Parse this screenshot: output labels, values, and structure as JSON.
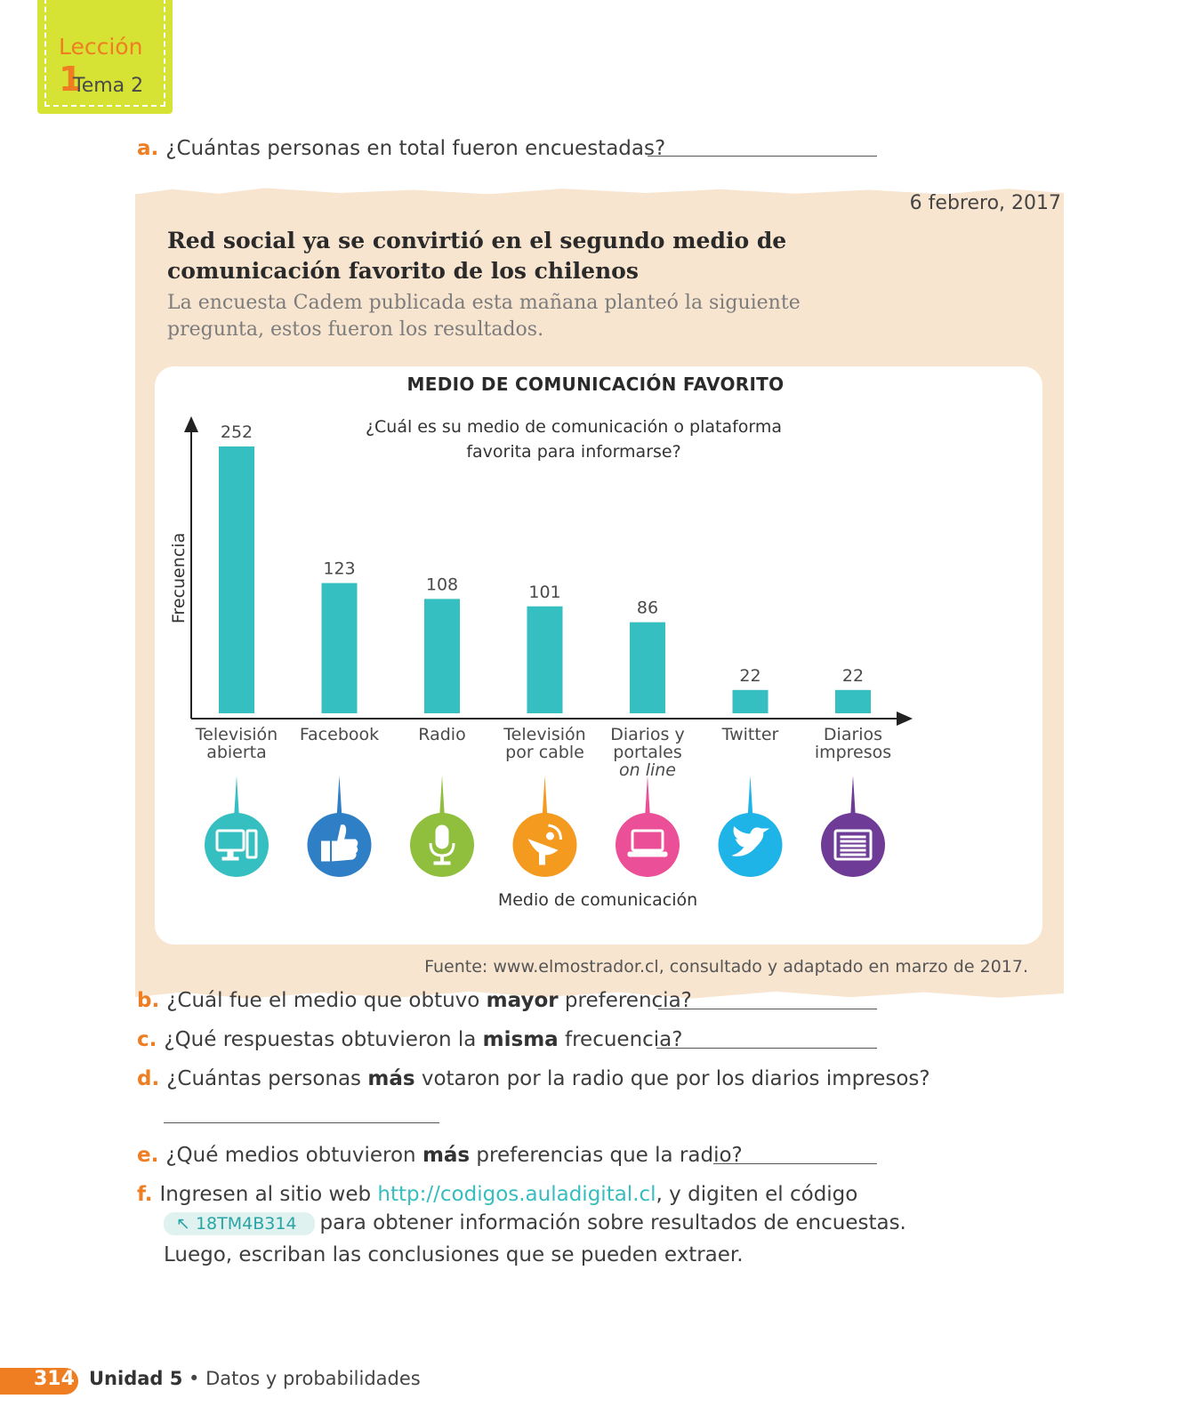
{
  "ribbon": {
    "leccion_word": "Lección",
    "leccion_num": "1",
    "tema": "Tema 2"
  },
  "questions": {
    "a": {
      "letter": "a.",
      "text": "¿Cuántas personas en total fueron encuestadas?"
    },
    "b": {
      "letter": "b.",
      "pre": "¿Cuál fue el medio que obtuvo ",
      "bold": "mayor",
      "post": " preferencia?"
    },
    "c": {
      "letter": "c.",
      "pre": "¿Qué respuestas obtuvieron la ",
      "bold": "misma",
      "post": " frecuencia?"
    },
    "d": {
      "letter": "d.",
      "pre": "¿Cuántas personas ",
      "bold": "más",
      "post": " votaron por la radio que por los diarios impresos?"
    },
    "e": {
      "letter": "e.",
      "pre": "¿Qué medios obtuvieron ",
      "bold": "más",
      "post": " preferencias que la radio?"
    },
    "f": {
      "letter": "f.",
      "pre": "Ingresen al sitio web ",
      "link": "http://codigos.auladigital.cl",
      "post": ", y digiten el código",
      "code": "18TM4B314",
      "line2": "para obtener información sobre resultados de encuestas.",
      "line3": "Luego, escriban las conclusiones que se pueden extraer."
    }
  },
  "article": {
    "date": "6 febrero, 2017",
    "headline": "Red social ya se convirtió en el segundo medio de comunicación favorito de los chilenos",
    "lede": "La encuesta Cadem publicada esta mañana planteó la siguiente pregunta, estos fueron los resultados.",
    "source": "Fuente: www.elmostrador.cl, consultado y adaptado en marzo de 2017."
  },
  "chart_data": {
    "type": "bar",
    "title": "MEDIO DE COMUNICACIÓN FAVORITO",
    "subtitle": "¿Cuál es su medio de comunicación o plataforma favorita para informarse?",
    "xlabel": "Medio de comunicación",
    "ylabel": "Frecuencia",
    "categories": [
      [
        "Televisión",
        "abierta"
      ],
      [
        "Facebook"
      ],
      [
        "Radio"
      ],
      [
        "Televisión",
        "por cable"
      ],
      [
        "Diarios y",
        "portales",
        "on line"
      ],
      [
        "Twitter"
      ],
      [
        "Diarios",
        "impresos"
      ]
    ],
    "values": [
      252,
      123,
      108,
      101,
      86,
      22,
      22
    ],
    "ylim": [
      0,
      260
    ],
    "bar_color": "#36bfc1",
    "icons": [
      {
        "name": "computer-icon",
        "color": "#36bfc1"
      },
      {
        "name": "thumbs-up-icon",
        "color": "#2f7fc6"
      },
      {
        "name": "microphone-icon",
        "color": "#8fbf3c"
      },
      {
        "name": "satellite-dish-icon",
        "color": "#f39a1f"
      },
      {
        "name": "laptop-icon",
        "color": "#ea4f98"
      },
      {
        "name": "twitter-bird-icon",
        "color": "#1fb4e8"
      },
      {
        "name": "newspaper-icon",
        "color": "#6e3c96"
      }
    ]
  },
  "footer": {
    "page": "314",
    "unit": "Unidad 5",
    "separator": "•",
    "topic": "Datos y probabilidades"
  }
}
